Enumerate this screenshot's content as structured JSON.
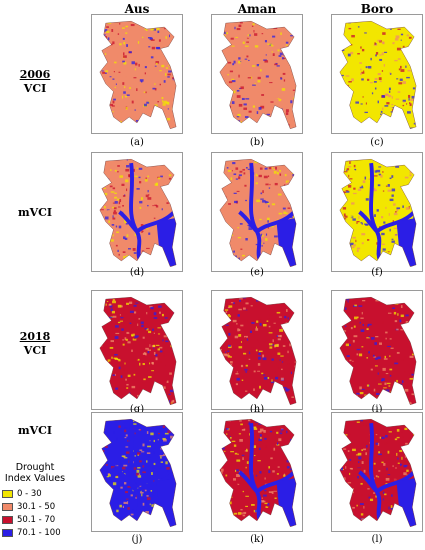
{
  "columns": [
    {
      "label": "Aus"
    },
    {
      "label": "Aman"
    },
    {
      "label": "Boro"
    }
  ],
  "rows": [
    {
      "year": "2006",
      "index": "VCI",
      "panels": [
        {
          "caption": "(a)",
          "dominant_class": "30.1 - 50"
        },
        {
          "caption": "(b)",
          "dominant_class": "30.1 - 50"
        },
        {
          "caption": "(c)",
          "dominant_class": "0 - 30"
        }
      ]
    },
    {
      "year": "",
      "index": "mVCI",
      "panels": [
        {
          "caption": "(d)",
          "dominant_class": "30.1 - 50"
        },
        {
          "caption": "(e)",
          "dominant_class": "30.1 - 50"
        },
        {
          "caption": "(f)",
          "dominant_class": "0 - 30"
        }
      ]
    },
    {
      "year": "2018",
      "index": "VCI",
      "panels": [
        {
          "caption": "(g)",
          "dominant_class": "50.1 - 70"
        },
        {
          "caption": "(h)",
          "dominant_class": "50.1 - 70"
        },
        {
          "caption": "(i)",
          "dominant_class": "50.1 - 70"
        }
      ]
    },
    {
      "year": "",
      "index": "mVCI",
      "panels": [
        {
          "caption": "(j)",
          "dominant_class": "70.1 - 100"
        },
        {
          "caption": "(k)",
          "dominant_class": "50.1 - 70"
        },
        {
          "caption": "(l)",
          "dominant_class": "50.1 - 70"
        }
      ]
    }
  ],
  "legend": {
    "title_line1": "Drought",
    "title_line2": "Index Values",
    "items": [
      {
        "label": "0 - 30",
        "color": "#f2e600"
      },
      {
        "label": "30.1 - 50",
        "color": "#f08a6a"
      },
      {
        "label": "50.1 - 70",
        "color": "#c8102e"
      },
      {
        "label": "70.1 - 100",
        "color": "#2b1ee6"
      }
    ]
  }
}
